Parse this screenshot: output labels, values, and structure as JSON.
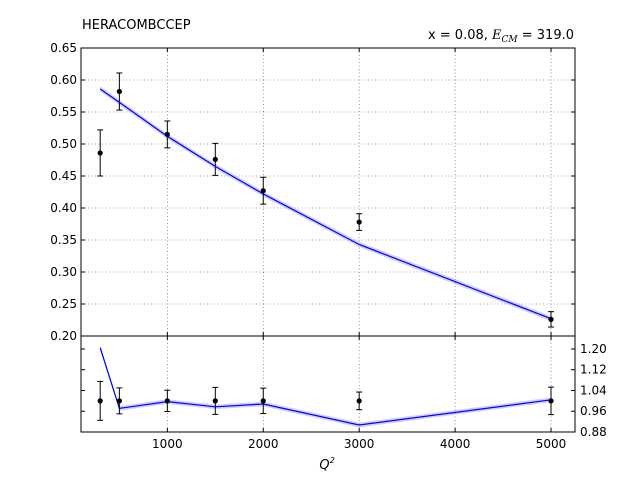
{
  "chart_data": {
    "type": "line",
    "title_left": "HERACOMBCCEP",
    "title_right_prefix": "x = 0.08, ",
    "title_right_symbol": "E",
    "title_right_sub": "CM",
    "title_right_suffix": " = 319.0",
    "xlabel": "Q",
    "xlabel_sup": "2",
    "xlim": [
      100,
      5250
    ],
    "x_ticks": [
      "1000",
      "2000",
      "3000",
      "4000",
      "5000"
    ],
    "x_tick_values": [
      1000,
      2000,
      3000,
      4000,
      5000
    ],
    "grid": true,
    "main": {
      "ylim": [
        0.2,
        0.65
      ],
      "y_ticks": [
        "0.20",
        "0.25",
        "0.30",
        "0.35",
        "0.40",
        "0.45",
        "0.50",
        "0.55",
        "0.60",
        "0.65"
      ],
      "y_tick_values": [
        0.2,
        0.25,
        0.3,
        0.35,
        0.4,
        0.45,
        0.5,
        0.55,
        0.6,
        0.65
      ],
      "data_points": [
        {
          "x": 300,
          "y": 0.486,
          "err": 0.036
        },
        {
          "x": 500,
          "y": 0.582,
          "err": 0.029
        },
        {
          "x": 1000,
          "y": 0.515,
          "err": 0.021
        },
        {
          "x": 1500,
          "y": 0.476,
          "err": 0.025
        },
        {
          "x": 2000,
          "y": 0.427,
          "err": 0.021
        },
        {
          "x": 3000,
          "y": 0.378,
          "err": 0.013
        },
        {
          "x": 5000,
          "y": 0.226,
          "err": 0.012
        }
      ],
      "model": {
        "x": [
          300,
          500,
          1000,
          1500,
          2000,
          3000,
          5000
        ],
        "y": [
          0.586,
          0.565,
          0.512,
          0.465,
          0.422,
          0.343,
          0.227
        ],
        "band": 0.004
      }
    },
    "ratio": {
      "ylim": [
        0.88,
        1.25
      ],
      "y_ticks": [
        "0.88",
        "0.96",
        "1.04",
        "1.12",
        "1.20"
      ],
      "y_tick_values": [
        0.88,
        0.96,
        1.04,
        1.12,
        1.2
      ],
      "data_points": [
        {
          "x": 300,
          "y": 1.0,
          "err": 0.075
        },
        {
          "x": 500,
          "y": 1.0,
          "err": 0.05
        },
        {
          "x": 1000,
          "y": 1.0,
          "err": 0.041
        },
        {
          "x": 1500,
          "y": 1.0,
          "err": 0.052
        },
        {
          "x": 2000,
          "y": 1.0,
          "err": 0.049
        },
        {
          "x": 3000,
          "y": 1.0,
          "err": 0.034
        },
        {
          "x": 5000,
          "y": 1.0,
          "err": 0.053
        }
      ],
      "model": {
        "x": [
          300,
          500,
          1000,
          1500,
          2000,
          3000,
          5000
        ],
        "y": [
          1.205,
          0.971,
          0.997,
          0.977,
          0.988,
          0.907,
          1.004
        ],
        "band": 0.009
      }
    }
  }
}
